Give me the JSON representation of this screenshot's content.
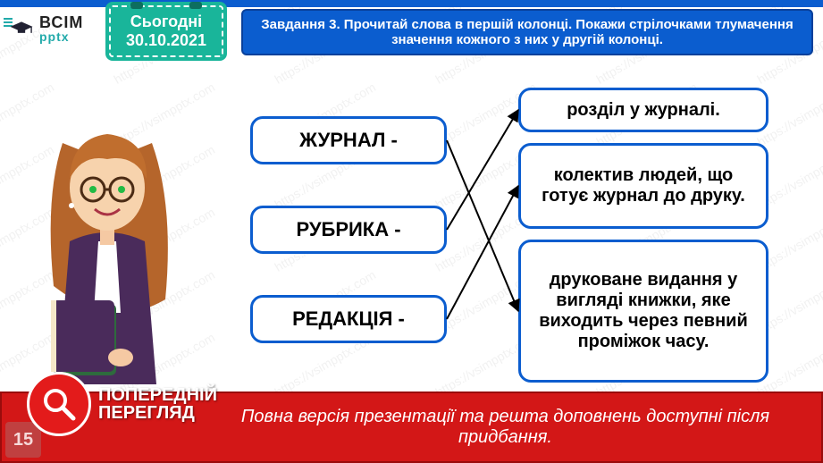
{
  "brand": {
    "line1": "ВСІМ",
    "line2": "pptx"
  },
  "date": {
    "label": "Сьогодні",
    "value": "30.10.2021"
  },
  "task": "Завдання 3. Прочитай слова в першій колонці. Покажи стрілочками тлумачення значення кожного з них у другій колонці.",
  "left_words": [
    "ЖУРНАЛ -",
    "РУБРИКА -",
    "РЕДАКЦІЯ -"
  ],
  "right_defs": [
    "розділ у журналі.",
    "колектив людей, що готує журнал до друку.",
    "друковане видання у вигляді книжки, яке виходить через певний проміжок часу."
  ],
  "preview": {
    "line1": "ПОПЕРЕДНІЙ",
    "line2": "ПЕРЕГЛЯД"
  },
  "footer": "Повна версія презентації та решта доповнень доступні після придбання.",
  "page_number": "15",
  "watermark_text": "https://vsimpptx.com",
  "colors": {
    "banner_blue": "#0b5dcf",
    "box_border": "#0b5dcf",
    "date_bg": "#19b59a",
    "footer_red": "#d31717",
    "preview_red": "#e31b1b"
  },
  "arrows": [
    {
      "from": "lb1",
      "to": "rb3"
    },
    {
      "from": "lb2",
      "to": "rb1"
    },
    {
      "from": "lb3",
      "to": "rb2"
    }
  ]
}
